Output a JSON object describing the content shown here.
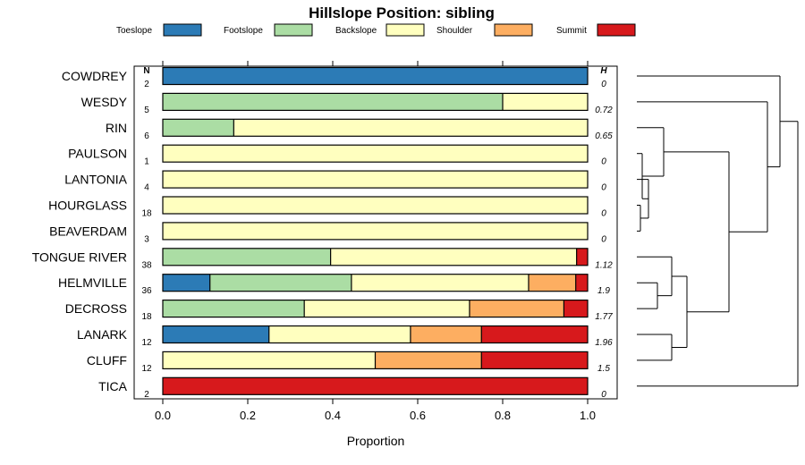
{
  "chart_data": {
    "type": "bar",
    "orientation": "horizontal",
    "stacked": true,
    "title": "Hillslope Position: sibling",
    "xlabel": "Proportion",
    "xlim": [
      0,
      1
    ],
    "x_ticks": [
      "0.0",
      "0.2",
      "0.4",
      "0.6",
      "0.8",
      "1.0"
    ],
    "legend_position": "top",
    "grid": false,
    "n_header": "N",
    "h_header": "H",
    "series": [
      {
        "name": "Toeslope",
        "color": "#2c7bb6"
      },
      {
        "name": "Footslope",
        "color": "#abdda4"
      },
      {
        "name": "Backslope",
        "color": "#ffffbf"
      },
      {
        "name": "Shoulder",
        "color": "#fdae61"
      },
      {
        "name": "Summit",
        "color": "#d7191c"
      }
    ],
    "categories": [
      {
        "name": "COWDREY",
        "n": "2",
        "h": "0",
        "values": [
          1,
          0,
          0,
          0,
          0
        ]
      },
      {
        "name": "WESDY",
        "n": "5",
        "h": "0.72",
        "values": [
          0,
          0.8,
          0.2,
          0,
          0
        ]
      },
      {
        "name": "RIN",
        "n": "6",
        "h": "0.65",
        "values": [
          0,
          0.167,
          0.833,
          0,
          0
        ]
      },
      {
        "name": "PAULSON",
        "n": "1",
        "h": "0",
        "values": [
          0,
          0,
          1,
          0,
          0
        ]
      },
      {
        "name": "LANTONIA",
        "n": "4",
        "h": "0",
        "values": [
          0,
          0,
          1,
          0,
          0
        ]
      },
      {
        "name": "HOURGLASS",
        "n": "18",
        "h": "0",
        "values": [
          0,
          0,
          1,
          0,
          0
        ]
      },
      {
        "name": "BEAVERDAM",
        "n": "3",
        "h": "0",
        "values": [
          0,
          0,
          1,
          0,
          0
        ]
      },
      {
        "name": "TONGUE RIVER",
        "n": "38",
        "h": "1.12",
        "values": [
          0,
          0.395,
          0.579,
          0,
          0.026
        ]
      },
      {
        "name": "HELMVILLE",
        "n": "36",
        "h": "1.9",
        "values": [
          0.111,
          0.333,
          0.417,
          0.111,
          0.028
        ]
      },
      {
        "name": "DECROSS",
        "n": "18",
        "h": "1.77",
        "values": [
          0,
          0.333,
          0.389,
          0.222,
          0.056
        ]
      },
      {
        "name": "LANARK",
        "n": "12",
        "h": "1.96",
        "values": [
          0.25,
          0,
          0.333,
          0.167,
          0.25
        ]
      },
      {
        "name": "CLUFF",
        "n": "12",
        "h": "1.5",
        "values": [
          0,
          0,
          0.5,
          0.25,
          0.25
        ]
      },
      {
        "name": "TICA",
        "n": "2",
        "h": "0",
        "values": [
          0,
          0,
          0,
          0,
          1
        ]
      }
    ]
  }
}
